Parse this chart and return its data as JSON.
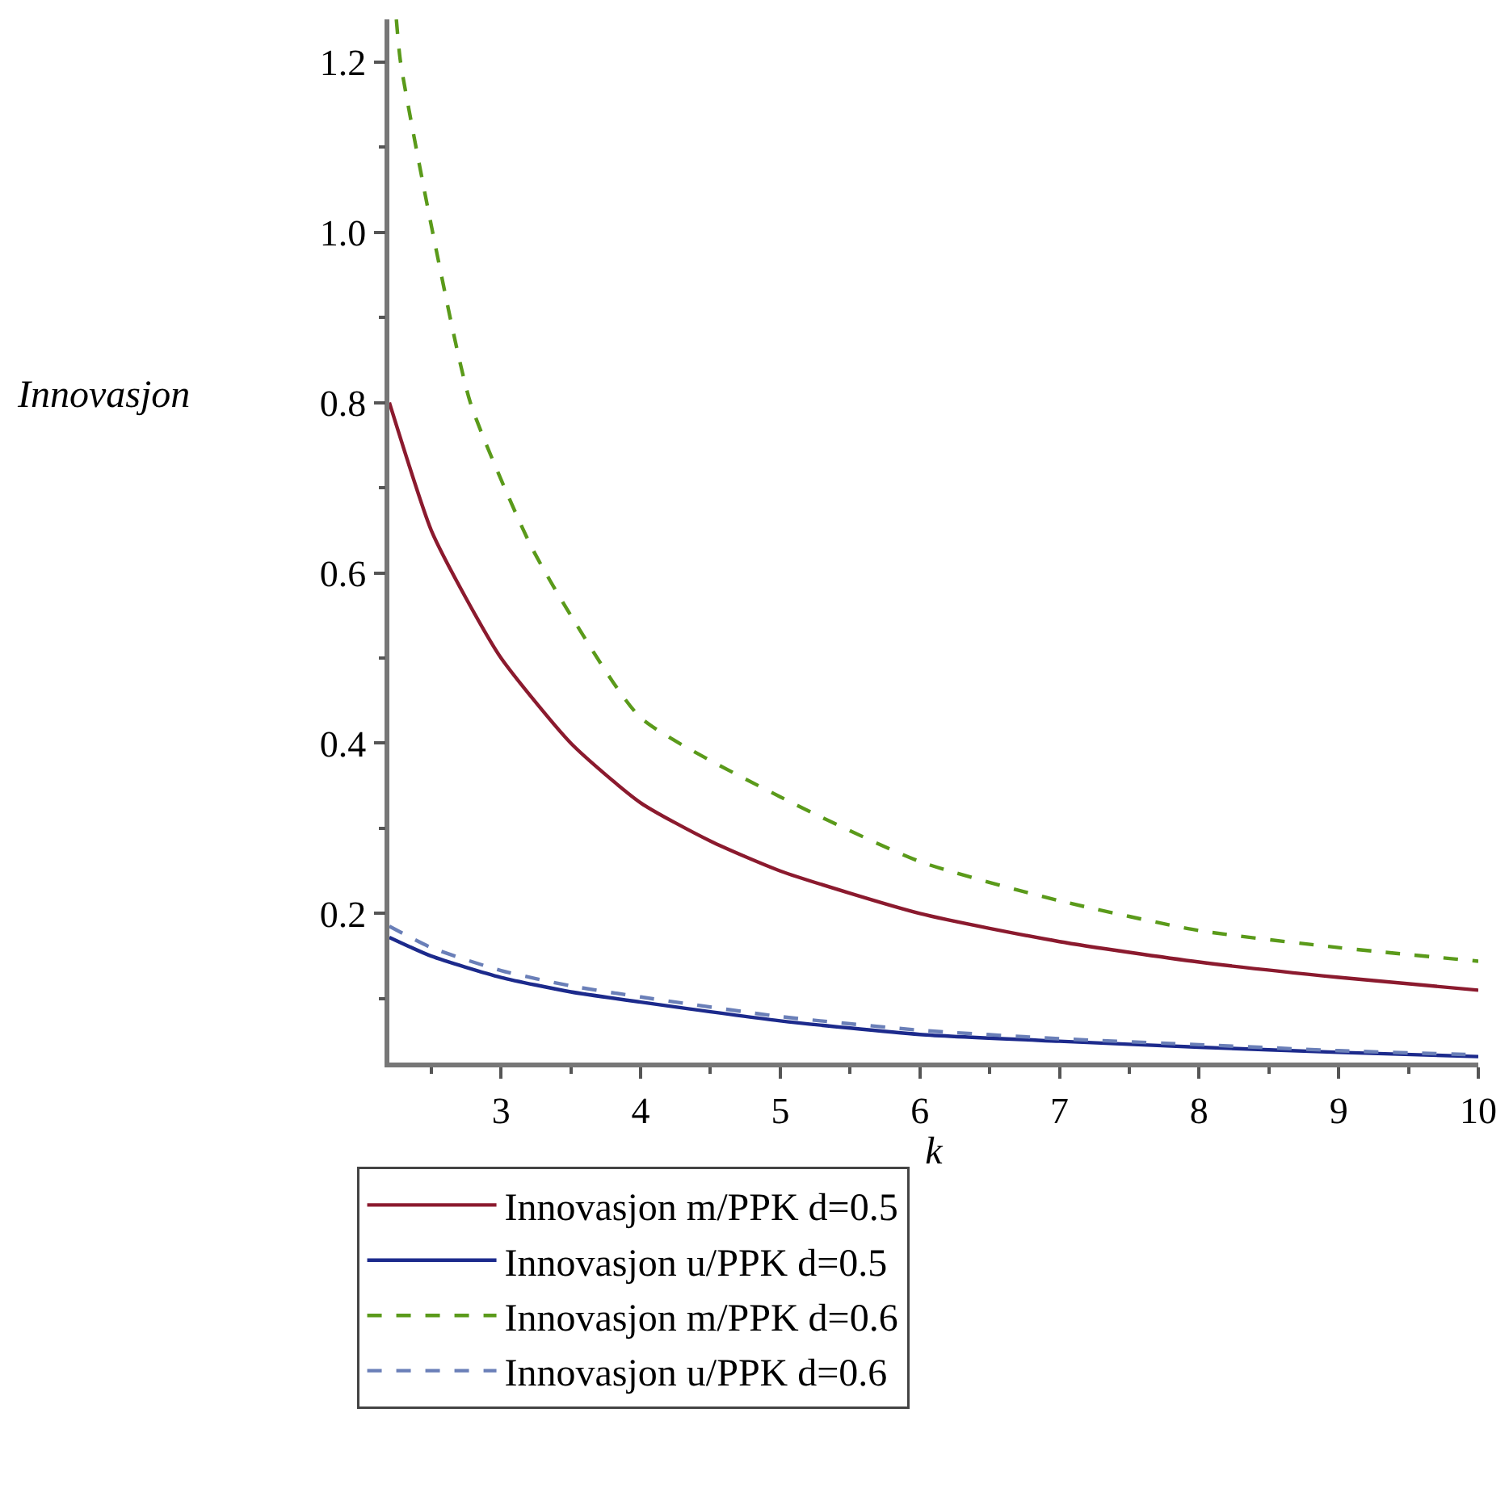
{
  "chart_data": {
    "type": "line",
    "xlabel": "k",
    "ylabel": "Innovasjon",
    "xlim": [
      2.2,
      10
    ],
    "ylim": [
      0.025,
      1.25
    ],
    "xticks": [
      3,
      4,
      5,
      6,
      7,
      8,
      9,
      10
    ],
    "yticks": [
      {
        "value": 0.2,
        "label": "0.2"
      },
      {
        "value": 0.4,
        "label": "0.4"
      },
      {
        "value": 0.6,
        "label": "0.6"
      },
      {
        "value": 0.8,
        "label": "0.8"
      },
      {
        "value": 1.0,
        "label": "1.0"
      },
      {
        "value": 1.2,
        "label": "1.2"
      }
    ],
    "grid": false,
    "legend": "bottom",
    "series": [
      {
        "name": "Innovasjon m/PPK d=0.5",
        "color": "#8b1a2e",
        "line_style": "solid",
        "x": [
          2.2,
          2.5,
          2.75,
          3,
          3.5,
          4,
          4.5,
          5,
          6,
          7,
          8,
          9,
          10
        ],
        "values": [
          0.8,
          0.65,
          0.57,
          0.5,
          0.4,
          0.33,
          0.285,
          0.25,
          0.2,
          0.167,
          0.143,
          0.125,
          0.11
        ]
      },
      {
        "name": "Innovasjon u/PPK d=0.5",
        "color": "#1c2a8c",
        "line_style": "solid",
        "x": [
          2.2,
          2.5,
          3,
          3.5,
          4,
          5,
          6,
          7,
          8,
          9,
          10
        ],
        "values": [
          0.172,
          0.15,
          0.125,
          0.108,
          0.096,
          0.074,
          0.058,
          0.05,
          0.043,
          0.037,
          0.032
        ]
      },
      {
        "name": "Innovasjon m/PPK d=0.6",
        "color": "#5a9a1a",
        "line_style": "dashed",
        "x": [
          2.25,
          2.28,
          2.51,
          2.78,
          3.21,
          3.5,
          4,
          5,
          6,
          7,
          8,
          9,
          10
        ],
        "values": [
          1.25,
          1.2,
          1.0,
          0.8,
          0.633,
          0.55,
          0.43,
          0.337,
          0.261,
          0.215,
          0.18,
          0.16,
          0.144
        ]
      },
      {
        "name": "Innovasjon u/PPK d=0.6",
        "color": "#6a7fb8",
        "line_style": "dashed",
        "x": [
          2.2,
          2.5,
          3,
          3.5,
          4,
          5,
          6,
          7,
          8,
          9,
          10
        ],
        "values": [
          0.185,
          0.16,
          0.133,
          0.115,
          0.102,
          0.079,
          0.063,
          0.053,
          0.046,
          0.039,
          0.034
        ]
      }
    ]
  }
}
